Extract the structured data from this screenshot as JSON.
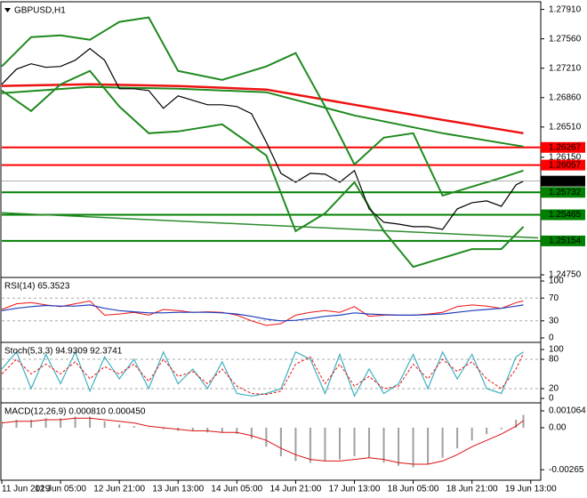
{
  "chart_data": [
    {
      "type": "line",
      "title": "GBPUSD,H1",
      "xlim": [
        0,
        146
      ],
      "xticks": [
        {
          "value": 0,
          "label": "11 Jun 2019"
        },
        {
          "value": 16,
          "label": "12 Jun 05:00"
        },
        {
          "value": 32,
          "label": "12 Jun 21:00"
        },
        {
          "value": 48,
          "label": "13 Jun 13:00"
        },
        {
          "value": 64,
          "label": "14 Jun 05:00"
        },
        {
          "value": 80,
          "label": "14 Jun 21:00"
        },
        {
          "value": 96,
          "label": "17 Jun 13:00"
        },
        {
          "value": 112,
          "label": "18 Jun 05:00"
        },
        {
          "value": 128,
          "label": "18 Jun 21:00"
        },
        {
          "value": 144,
          "label": "19 Jun 13:00"
        }
      ],
      "ylim": [
        1.2474,
        1.2798
      ],
      "yticks": [
        {
          "value": 1.2791,
          "label": "1.27910"
        },
        {
          "value": 1.2756,
          "label": "1.27560"
        },
        {
          "value": 1.2721,
          "label": "1.27210"
        },
        {
          "value": 1.2686,
          "label": "1.26860"
        },
        {
          "value": 1.2651,
          "label": "1.26510"
        },
        {
          "value": 1.2615,
          "label": "1.26150"
        },
        {
          "value": 1.2475,
          "label": "1.24750"
        }
      ],
      "x": [
        0,
        4,
        8,
        12,
        16,
        20,
        24,
        28,
        32,
        36,
        40,
        44,
        48,
        52,
        56,
        60,
        64,
        68,
        72,
        76,
        80,
        84,
        88,
        92,
        96,
        100,
        104,
        108,
        112,
        116,
        120,
        124,
        128,
        132,
        136,
        140,
        142
      ],
      "series": [
        {
          "color": "#2e8b2e",
          "width": 1.5,
          "x": [
            0,
            146
          ],
          "values": [
            1.2549,
            1.2519
          ]
        },
        {
          "color": "#ee1111",
          "width": 2.5,
          "x": [
            0,
            24,
            48,
            72,
            96,
            120,
            142
          ],
          "values": [
            1.27,
            1.27019,
            1.26998,
            1.26956,
            1.26775,
            1.26595,
            1.26436
          ]
        },
        {
          "color": "#1f8a1f",
          "width": 2,
          "x": [
            0,
            24,
            48,
            72,
            96,
            120,
            142
          ],
          "values": [
            1.26913,
            1.26987,
            1.26966,
            1.26924,
            1.26648,
            1.26436,
            1.26277
          ]
        },
        {
          "color": "#1f8a1f",
          "width": 2,
          "x": [
            0,
            8,
            16,
            24,
            32,
            40,
            48,
            60,
            72,
            80,
            88,
            96,
            104,
            112,
            120,
            128,
            136,
            142
          ],
          "values": [
            1.27231,
            1.27581,
            1.27602,
            1.27549,
            1.27762,
            1.27815,
            1.27178,
            1.27072,
            1.27231,
            1.2739,
            1.26754,
            1.26065,
            1.26383,
            1.26436,
            1.25694,
            1.258,
            1.25906,
            1.25991
          ]
        },
        {
          "color": "#1f8a1f",
          "width": 2,
          "x": [
            0,
            8,
            16,
            24,
            32,
            40,
            48,
            60,
            72,
            80,
            88,
            96,
            104,
            112,
            120,
            128,
            136,
            142
          ],
          "values": [
            1.26945,
            1.26701,
            1.27019,
            1.27178,
            1.26754,
            1.26436,
            1.26457,
            1.26542,
            1.26171,
            1.2527,
            1.25482,
            1.25853,
            1.2527,
            1.24845,
            1.24951,
            1.25057,
            1.25057,
            1.25323
          ]
        },
        {
          "color": "#000000",
          "width": 1.2,
          "values": [
            1.27019,
            1.27199,
            1.27263,
            1.27221,
            1.27231,
            1.27306,
            1.27443,
            1.27306,
            1.26966,
            1.26966,
            1.26945,
            1.26733,
            1.26881,
            1.26828,
            1.26775,
            1.26775,
            1.26754,
            1.26669,
            1.2633,
            1.25959,
            1.25853,
            1.25959,
            1.25948,
            1.25853,
            1.25991,
            1.25535,
            1.25376,
            1.25354,
            1.25323,
            1.25323,
            1.25291,
            1.25535,
            1.25609,
            1.2563,
            1.25566,
            1.25821,
            1.25866
          ]
        }
      ],
      "levels": [
        {
          "value": 1.26267,
          "color": "#ff0000"
        },
        {
          "value": 1.26057,
          "color": "#ff0000"
        },
        {
          "value": 1.25732,
          "color": "#008000"
        },
        {
          "value": 1.25465,
          "color": "#008000"
        },
        {
          "value": 1.25154,
          "color": "#008000"
        }
      ],
      "last_price": 1.25866
    },
    {
      "type": "line",
      "title": "RSI(14) 65.3523",
      "ylim": [
        0,
        100
      ],
      "yticks": [
        100,
        70,
        30,
        0
      ],
      "grid": true,
      "series": [
        {
          "color": "#ee1111",
          "width": 1,
          "values": [
            50,
            60,
            62,
            58,
            55,
            60,
            65,
            40,
            42,
            45,
            40,
            50,
            48,
            45,
            46,
            45,
            40,
            30,
            22,
            25,
            40,
            45,
            48,
            45,
            55,
            38,
            40,
            40,
            40,
            42,
            45,
            55,
            58,
            56,
            52,
            62,
            65
          ]
        },
        {
          "color": "#1f3fbf",
          "width": 1.2,
          "values": [
            48,
            52,
            55,
            57,
            56,
            56,
            58,
            52,
            48,
            46,
            44,
            44,
            45,
            45,
            45,
            44,
            42,
            38,
            33,
            30,
            31,
            34,
            38,
            40,
            44,
            42,
            41,
            40,
            40,
            41,
            42,
            45,
            48,
            50,
            52,
            56,
            58
          ]
        }
      ]
    },
    {
      "type": "line",
      "title": "Stoch(5,3,3) 94.9309 92.3741",
      "ylim": [
        0,
        100
      ],
      "yticks": [
        100,
        80,
        20,
        0
      ],
      "grid": true,
      "series": [
        {
          "color": "#3fb0c0",
          "width": 1.2,
          "values": [
            60,
            95,
            20,
            90,
            30,
            95,
            15,
            85,
            40,
            80,
            20,
            95,
            30,
            60,
            20,
            75,
            10,
            5,
            10,
            20,
            95,
            80,
            10,
            90,
            5,
            60,
            10,
            30,
            90,
            20,
            95,
            40,
            90,
            20,
            10,
            85,
            95
          ]
        },
        {
          "color": "#ee1111",
          "width": 1,
          "dash": true,
          "values": [
            50,
            80,
            50,
            70,
            50,
            75,
            40,
            65,
            50,
            70,
            35,
            80,
            45,
            55,
            30,
            60,
            25,
            10,
            8,
            15,
            70,
            85,
            30,
            70,
            25,
            45,
            20,
            25,
            70,
            40,
            80,
            55,
            75,
            40,
            20,
            60,
            92
          ]
        }
      ]
    },
    {
      "type": "line",
      "title": "MACD(12,26,9) 0.000810 0.000450",
      "ylim": [
        -0.0032,
        0.0014
      ],
      "yticks": [
        {
          "value": 0.001064,
          "label": "0.001064"
        },
        {
          "value": 0,
          "label": "0.00"
        },
        {
          "value": -0.00265,
          "label": "-0.00265"
        }
      ],
      "series": [
        {
          "type": "bar",
          "color": "#a0a0a0",
          "values": [
            0.0004,
            0.0005,
            0.0005,
            0.0006,
            0.0006,
            0.0007,
            0.0007,
            0.0004,
            0.0002,
            0.0001,
            0,
            -0.0001,
            -0.0002,
            -0.0002,
            -0.0003,
            -0.0003,
            -0.0004,
            -0.0007,
            -0.0012,
            -0.0018,
            -0.0021,
            -0.0022,
            -0.0021,
            -0.002,
            -0.0018,
            -0.0019,
            -0.0022,
            -0.0024,
            -0.0025,
            -0.0023,
            -0.0019,
            -0.0013,
            -0.0008,
            -0.0004,
            -0.0001,
            0.0005,
            0.00081
          ]
        },
        {
          "color": "#dd1111",
          "width": 1,
          "values": [
            0.0003,
            0.0004,
            0.0004,
            0.0005,
            0.0005,
            0.0006,
            0.0006,
            0.0005,
            0.0004,
            0.0003,
            0.0001,
            0,
            -0.0001,
            -0.0002,
            -0.0002,
            -0.0003,
            -0.0003,
            -0.0005,
            -0.0008,
            -0.0013,
            -0.0017,
            -0.002,
            -0.0021,
            -0.0021,
            -0.002,
            -0.0019,
            -0.002,
            -0.0022,
            -0.0023,
            -0.0023,
            -0.0021,
            -0.0017,
            -0.0012,
            -0.0008,
            -0.0004,
            0.0001,
            0.00045
          ]
        }
      ]
    }
  ]
}
